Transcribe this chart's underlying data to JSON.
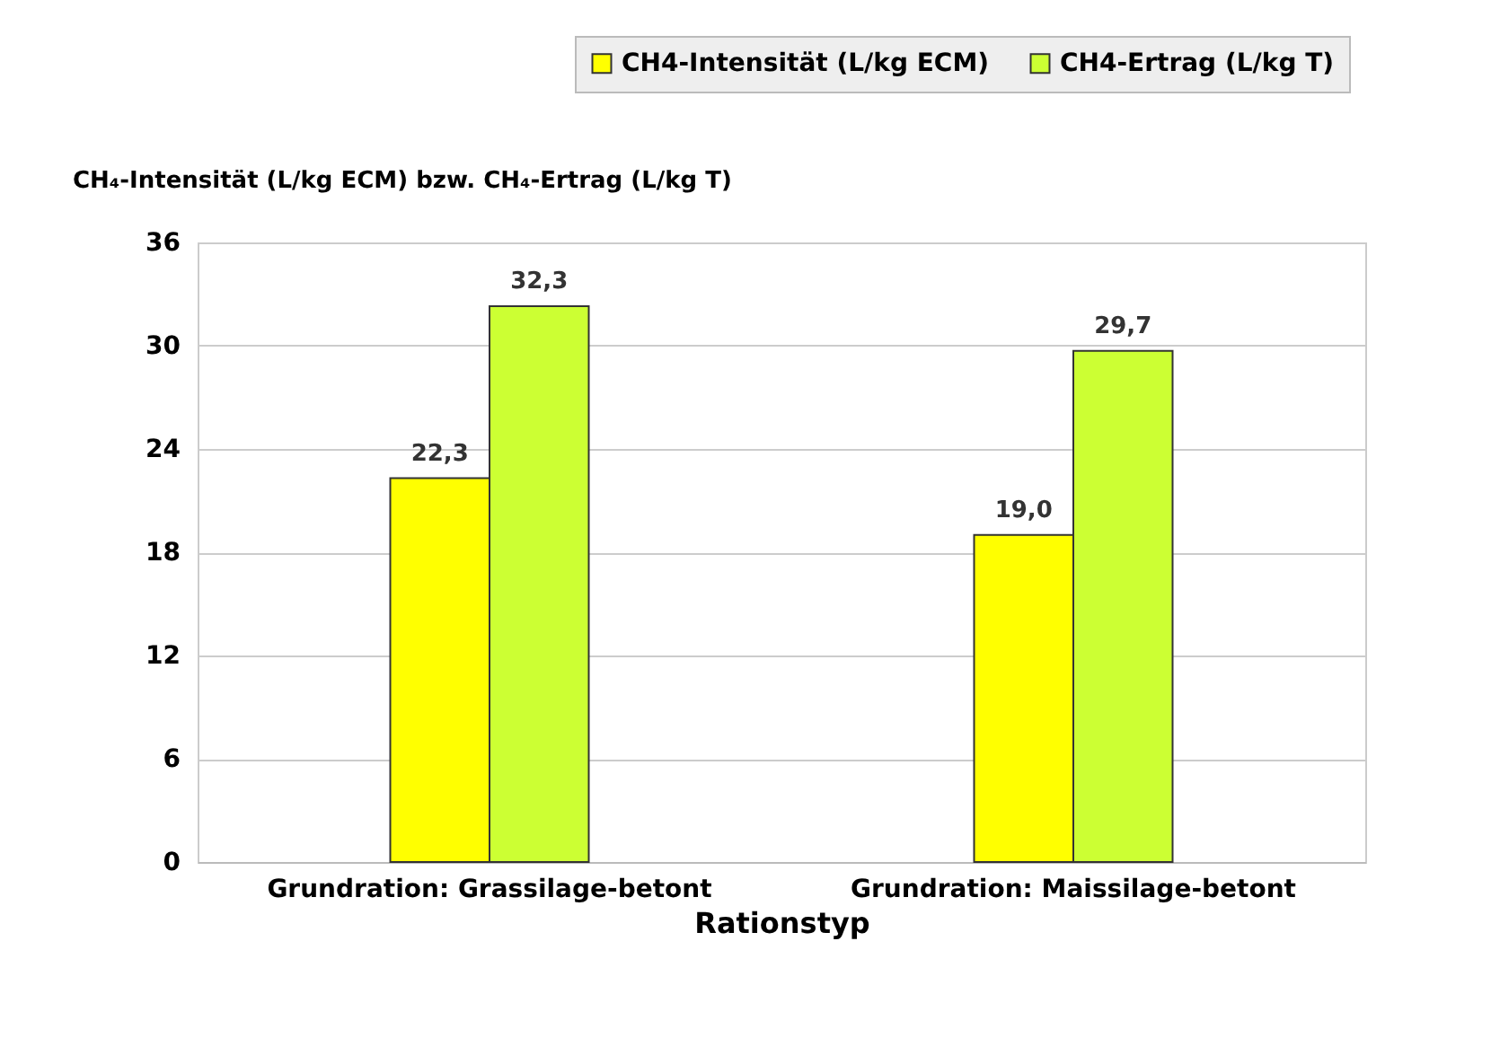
{
  "chart_data": {
    "type": "bar",
    "xlabel": "Rationstyp",
    "ylabel": "CH₄-Intensität (L/kg ECM) bzw. CH₄-Ertrag (L/kg T)",
    "categories": [
      "Grundration: Grassilage-betont",
      "Grundration: Maissilage-betont"
    ],
    "series": [
      {
        "name": "CH4-Intensität (L/kg ECM)",
        "color": "#ffff00",
        "values": [
          22.3,
          19.0
        ],
        "value_labels": [
          "22,3",
          "19,0"
        ]
      },
      {
        "name": "CH4-Ertrag (L/kg T)",
        "color": "#ccff33",
        "values": [
          32.3,
          29.7
        ],
        "value_labels": [
          "32,3",
          "29,7"
        ]
      }
    ],
    "ylim": [
      0,
      36
    ],
    "yticks": [
      0,
      6,
      12,
      18,
      24,
      30,
      36
    ],
    "grid": "y",
    "legend": "top"
  }
}
